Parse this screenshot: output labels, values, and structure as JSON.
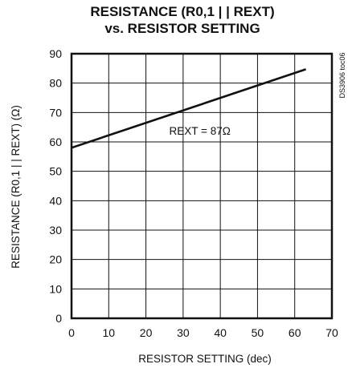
{
  "chart_data": {
    "type": "line",
    "title_line1": "RESISTANCE (R0,1 | | REXT)",
    "title_line2": "vs. RESISTOR SETTING",
    "xlabel": "RESISTOR SETTING (dec)",
    "ylabel": "RESISTANCE (R0,1 | | REXT) (Ω)",
    "xlim": [
      0,
      70
    ],
    "ylim": [
      0,
      90
    ],
    "xticks": [
      0,
      10,
      20,
      30,
      40,
      50,
      60,
      70
    ],
    "yticks": [
      0,
      10,
      20,
      30,
      40,
      50,
      60,
      70,
      80,
      90
    ],
    "grid": true,
    "series": [
      {
        "x": [
          0,
          63
        ],
        "y": [
          58,
          84.7
        ]
      }
    ],
    "annotation": {
      "text": "REXT = 87Ω",
      "x": 34.5,
      "y": 62.5
    },
    "figure_code": "DS3906 toc06"
  }
}
